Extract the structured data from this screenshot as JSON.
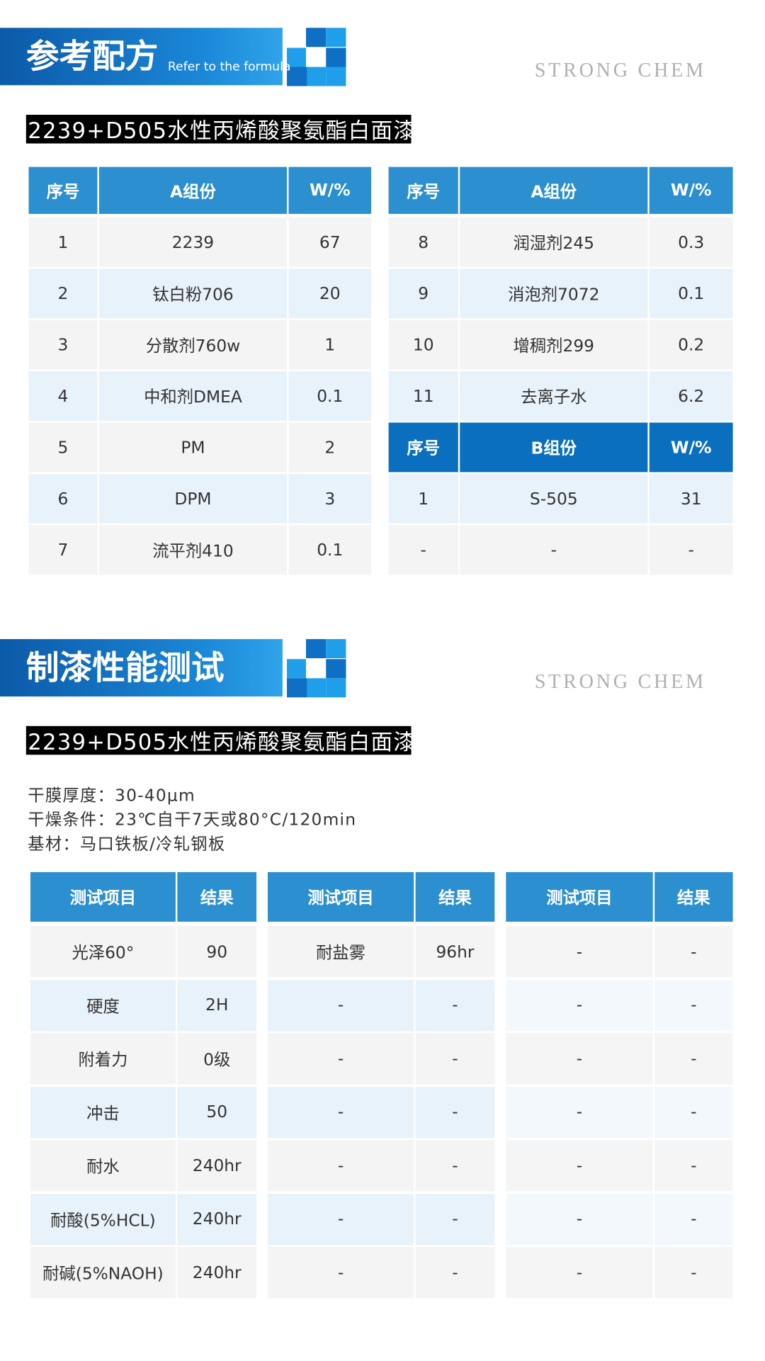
{
  "sections": [
    {
      "title": "参考配方",
      "title_en": "Refer to the formula",
      "brand": "STRONG CHEM",
      "subtitle": "2239+D505水性丙烯酸聚氨酯白面漆"
    },
    {
      "title": "制漆性能测试",
      "brand": "STRONG CHEM",
      "subtitle": "2239+D505水性丙烯酸聚氨酯白面漆"
    }
  ],
  "formula_tables": [
    {
      "header": [
        "序号",
        "A组份",
        "W/%"
      ],
      "rows": [
        [
          "1",
          "2239",
          "67"
        ],
        [
          "2",
          "钛白粉706",
          "20"
        ],
        [
          "3",
          "分散剂760w",
          "1"
        ],
        [
          "4",
          "中和剂DMEA",
          "0.1"
        ],
        [
          "5",
          "PM",
          "2"
        ],
        [
          "6",
          "DPM",
          "3"
        ],
        [
          "7",
          "流平剂410",
          "0.1"
        ]
      ]
    },
    {
      "header": [
        "序号",
        "A组份",
        "W/%"
      ],
      "rows": [
        [
          "8",
          "润湿剂245",
          "0.3"
        ],
        [
          "9",
          "消泡剂7072",
          "0.1"
        ],
        [
          "10",
          "增稠剂299",
          "0.2"
        ],
        [
          "11",
          "去离子水",
          "6.2"
        ]
      ],
      "header2": [
        "序号",
        "B组份",
        "W/%"
      ],
      "rows2": [
        [
          "1",
          "S-505",
          "31"
        ],
        [
          "-",
          "-",
          "-"
        ]
      ]
    }
  ],
  "conditions": [
    "干膜厚度：30-40μm",
    "干燥条件：23℃自干7天或80°C/120min",
    "基材：马口铁板/冷轧钢板"
  ],
  "test_tables": [
    {
      "header": [
        "测试项目",
        "结果"
      ],
      "rows": [
        [
          "光泽60°",
          "90"
        ],
        [
          "硬度",
          "2H"
        ],
        [
          "附着力",
          "0级"
        ],
        [
          "冲击",
          "50"
        ],
        [
          "耐水",
          "240hr"
        ],
        [
          "耐酸(5%HCL)",
          "240hr"
        ],
        [
          "耐碱(5%NAOH)",
          "240hr"
        ]
      ]
    },
    {
      "header": [
        "测试项目",
        "结果"
      ],
      "rows": [
        [
          "耐盐雾",
          "96hr"
        ],
        [
          "-",
          "-"
        ],
        [
          "-",
          "-"
        ],
        [
          "-",
          "-"
        ],
        [
          "-",
          "-"
        ],
        [
          "-",
          "-"
        ],
        [
          "-",
          "-"
        ]
      ]
    },
    {
      "header": [
        "测试项目",
        "结果"
      ],
      "rows": [
        [
          "-",
          "-"
        ],
        [
          "-",
          "-"
        ],
        [
          "-",
          "-"
        ],
        [
          "-",
          "-"
        ],
        [
          "-",
          "-"
        ],
        [
          "-",
          "-"
        ],
        [
          "-",
          "-"
        ]
      ]
    }
  ]
}
